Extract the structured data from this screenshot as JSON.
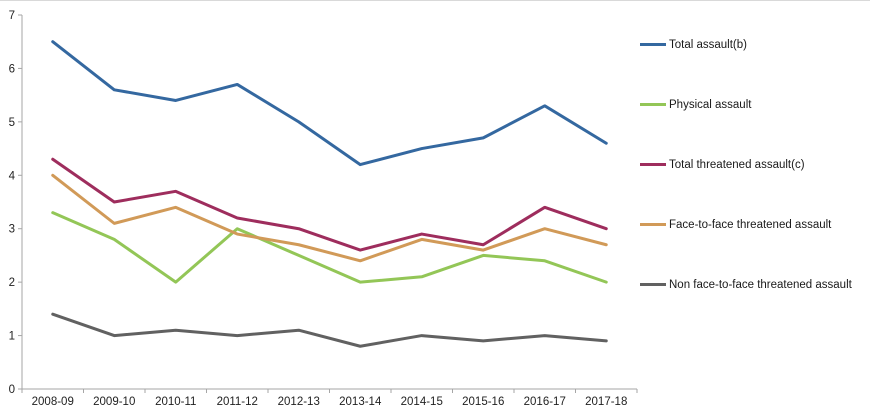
{
  "chart_data": {
    "type": "line",
    "title": "",
    "xlabel": "",
    "ylabel": "",
    "categories": [
      "2008-09",
      "2009-10",
      "2010-11",
      "2011-12",
      "2012-13",
      "2013-14",
      "2014-15",
      "2015-16",
      "2016-17",
      "2017-18"
    ],
    "series": [
      {
        "name": "Total assault(b)",
        "color": "#3468a0",
        "values": [
          6.5,
          5.6,
          5.4,
          5.7,
          5.0,
          4.2,
          4.5,
          4.7,
          5.3,
          4.6
        ]
      },
      {
        "name": "Physical assault",
        "color": "#93c657",
        "values": [
          3.3,
          2.8,
          2.0,
          3.0,
          2.5,
          2.0,
          2.1,
          2.5,
          2.4,
          2.0
        ]
      },
      {
        "name": "Total threatened assault(c)",
        "color": "#9e2d5d",
        "values": [
          4.3,
          3.5,
          3.7,
          3.2,
          3.0,
          2.6,
          2.9,
          2.7,
          3.4,
          3.0
        ]
      },
      {
        "name": "Face-to-face threatened assault",
        "color": "#d19a58",
        "values": [
          4.0,
          3.1,
          3.4,
          2.9,
          2.7,
          2.4,
          2.8,
          2.6,
          3.0,
          2.7
        ]
      },
      {
        "name": "Non face-to-face threatened assault",
        "color": "#616161",
        "values": [
          1.4,
          1.0,
          1.1,
          1.0,
          1.1,
          0.8,
          1.0,
          0.9,
          1.0,
          0.9
        ]
      }
    ],
    "ylim": [
      0,
      7
    ],
    "yticks": [
      "0",
      "1",
      "2",
      "3",
      "4",
      "5",
      "6",
      "7"
    ],
    "grid": false,
    "legend_position": "right",
    "colors": {
      "axis": "#a6a6a6",
      "tick_label": "#1f1f1f",
      "legend_text": "#1a1a1a",
      "background": "#ffffff"
    }
  }
}
